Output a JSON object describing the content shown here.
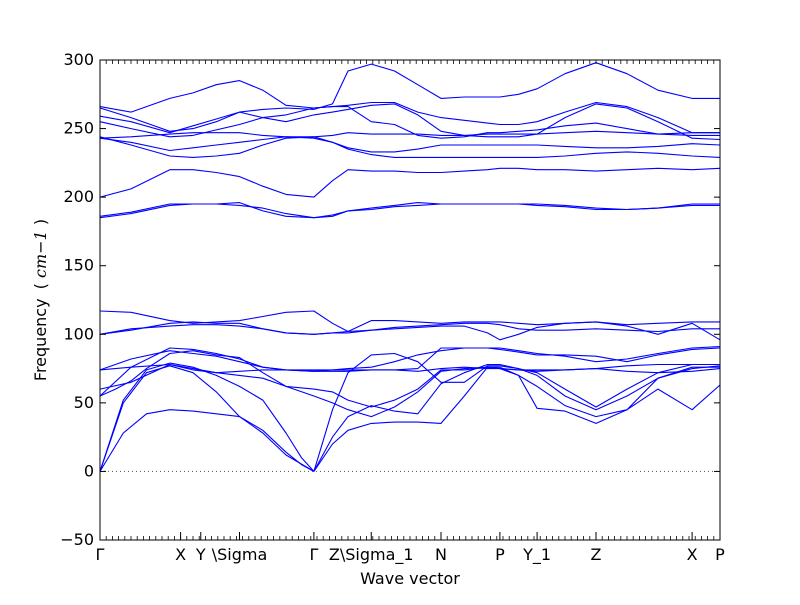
{
  "chart_data": {
    "type": "line",
    "title": "",
    "xlabel": "Wave vector",
    "ylabel": "Frequency",
    "ylabel_unit": "cm−1",
    "ylim": [
      -50,
      300
    ],
    "yticks": [
      -50,
      0,
      50,
      100,
      150,
      200,
      250,
      300
    ],
    "xlim": [
      0,
      4.0
    ],
    "grid": false,
    "legend": "none",
    "zero_line": {
      "y": 0,
      "style": "dotted",
      "color": "#555555"
    },
    "line_color": "#0000ff",
    "xticks_labels": [
      {
        "x": 0.0,
        "label": "Γ"
      },
      {
        "x": 0.52,
        "label": "X"
      },
      {
        "x": 0.65,
        "label": "Y"
      },
      {
        "x": 0.9,
        "label": "\\Sigma"
      },
      {
        "x": 1.38,
        "label": "Γ"
      },
      {
        "x": 1.75,
        "label": "Z\\Sigma_1"
      },
      {
        "x": 2.2,
        "label": "N"
      },
      {
        "x": 2.58,
        "label": "P"
      },
      {
        "x": 2.82,
        "label": "Y_1"
      },
      {
        "x": 3.2,
        "label": "Z"
      },
      {
        "x": 3.82,
        "label": "X"
      },
      {
        "x": 4.0,
        "label": "P"
      }
    ],
    "series": [
      {
        "x": [
          0,
          0.15,
          0.3,
          0.45,
          0.6,
          0.75,
          0.9,
          1.05,
          1.2,
          1.3,
          1.38
        ],
        "y": [
          0,
          50,
          72,
          77,
          72,
          58,
          40,
          30,
          14,
          5,
          0
        ]
      },
      {
        "x": [
          0,
          0.15,
          0.3,
          0.45,
          0.6,
          0.75,
          0.9,
          1.05,
          1.2,
          1.3,
          1.38
        ],
        "y": [
          0,
          52,
          74,
          79,
          76,
          70,
          62,
          52,
          28,
          10,
          0
        ]
      },
      {
        "x": [
          0,
          0.15,
          0.3,
          0.45,
          0.6,
          0.75,
          0.9,
          1.05,
          1.2,
          1.38
        ],
        "y": [
          0,
          28,
          42,
          45,
          44,
          42,
          40,
          28,
          12,
          0
        ]
      },
      {
        "x": [
          1.38,
          1.5,
          1.6,
          1.75,
          1.9,
          2.05,
          2.2,
          2.35,
          2.5,
          2.58,
          2.7,
          2.82,
          3.0,
          3.2,
          3.4,
          3.6,
          3.82,
          4.0
        ],
        "y": [
          0,
          20,
          30,
          35,
          36,
          36,
          35,
          55,
          76,
          76,
          70,
          46,
          44,
          35,
          45,
          60,
          45,
          63
        ]
      },
      {
        "x": [
          1.38,
          1.5,
          1.6,
          1.75,
          1.9,
          2.05,
          2.2,
          2.35,
          2.5,
          2.58,
          2.7,
          2.82,
          3.0,
          3.2,
          3.4,
          3.6,
          3.82,
          4.0
        ],
        "y": [
          0,
          25,
          40,
          48,
          44,
          42,
          64,
          72,
          78,
          78,
          75,
          70,
          55,
          45,
          55,
          68,
          75,
          77
        ]
      },
      {
        "x": [
          1.38,
          1.5,
          1.6,
          1.75,
          1.9,
          2.05,
          2.2,
          2.35,
          2.5,
          2.58,
          2.7,
          2.82,
          3.0,
          3.2,
          3.4,
          3.6,
          3.82,
          4.0
        ],
        "y": [
          0,
          45,
          72,
          85,
          86,
          80,
          65,
          65,
          77,
          77,
          75,
          72,
          60,
          47,
          60,
          72,
          78,
          78
        ]
      },
      {
        "x": [
          0,
          0.1,
          0.2,
          0.3,
          0.45,
          0.6,
          0.75,
          0.9,
          1.05,
          1.2,
          1.38,
          1.5,
          1.6,
          1.75,
          1.9,
          2.05,
          2.2,
          2.35,
          2.5,
          2.58,
          2.7,
          2.82,
          3.0,
          3.2,
          3.4,
          3.6,
          3.82,
          4.0
        ],
        "y": [
          55,
          60,
          66,
          75,
          86,
          88,
          85,
          83,
          72,
          62,
          55,
          50,
          45,
          40,
          47,
          58,
          73,
          75,
          76,
          75,
          70,
          62,
          48,
          40,
          45,
          68,
          76,
          76
        ]
      },
      {
        "x": [
          0,
          0.2,
          0.45,
          0.6,
          0.75,
          0.9,
          1.05,
          1.2,
          1.38,
          1.5,
          1.6,
          1.75,
          1.9,
          2.05,
          2.2,
          2.35,
          2.5,
          2.58,
          2.7,
          2.82,
          3.0,
          3.2,
          3.4,
          3.6,
          3.82,
          4.0
        ],
        "y": [
          60,
          65,
          78,
          75,
          72,
          70,
          68,
          62,
          60,
          58,
          52,
          47,
          52,
          60,
          74,
          74,
          76,
          75,
          74,
          73,
          74,
          75,
          73,
          72,
          73,
          75
        ]
      },
      {
        "x": [
          0,
          0.2,
          0.45,
          0.6,
          0.75,
          0.9,
          1.05,
          1.2,
          1.38,
          1.5,
          1.6,
          1.75,
          1.9,
          2.05,
          2.2,
          2.35,
          2.5,
          2.58,
          2.7,
          2.82,
          3.0,
          3.2,
          3.4,
          3.6,
          3.82,
          4.0
        ],
        "y": [
          74,
          76,
          78,
          74,
          72,
          73,
          74,
          74,
          74,
          74,
          74,
          74,
          74,
          73,
          75,
          76,
          75,
          75,
          74,
          74,
          74,
          75,
          77,
          78,
          78,
          78
        ]
      },
      {
        "x": [
          0,
          0.2,
          0.45,
          0.6,
          0.75,
          0.9,
          1.05,
          1.2,
          1.38,
          1.5,
          1.6,
          1.75,
          1.9,
          2.05,
          2.2,
          2.35,
          2.5,
          2.58,
          2.7,
          2.82,
          3.0,
          3.2,
          3.4,
          3.6,
          3.82,
          4.0
        ],
        "y": [
          74,
          82,
          88,
          86,
          84,
          80,
          76,
          74,
          73,
          73,
          73,
          74,
          74,
          75,
          90,
          90,
          90,
          90,
          88,
          86,
          84,
          80,
          82,
          86,
          90,
          91
        ]
      },
      {
        "x": [
          0,
          0.2,
          0.45,
          0.6,
          0.75,
          0.9,
          1.05,
          1.2,
          1.38,
          1.5,
          1.6,
          1.75,
          1.9,
          2.05,
          2.2,
          2.35,
          2.5,
          2.58,
          2.7,
          2.82,
          3.0,
          3.2,
          3.4,
          3.6,
          3.82,
          4.0
        ],
        "y": [
          55,
          76,
          90,
          89,
          86,
          82,
          76,
          74,
          73,
          74,
          75,
          76,
          80,
          85,
          88,
          90,
          90,
          89,
          87,
          85,
          85,
          84,
          80,
          85,
          89,
          90
        ]
      },
      {
        "x": [
          0,
          0.2,
          0.45,
          0.6,
          0.75,
          0.9,
          1.05,
          1.2,
          1.38,
          1.5,
          1.6,
          1.75,
          1.9,
          2.05,
          2.2,
          2.35,
          2.5,
          2.58,
          2.7,
          2.82,
          3.0,
          3.2,
          3.4,
          3.6,
          3.82,
          4.0
        ],
        "y": [
          100,
          103,
          108,
          109,
          108,
          108,
          104,
          101,
          100,
          101,
          101,
          103,
          105,
          106,
          107,
          108,
          108,
          107,
          104,
          103,
          103,
          104,
          103,
          102,
          104,
          104
        ]
      },
      {
        "x": [
          0,
          0.2,
          0.45,
          0.6,
          0.75,
          0.9,
          1.05,
          1.2,
          1.38,
          1.5,
          1.6,
          1.75,
          1.9,
          2.05,
          2.2,
          2.35,
          2.5,
          2.58,
          2.7,
          2.82,
          3.0,
          3.2,
          3.4,
          3.6,
          3.82,
          4.0
        ],
        "y": [
          100,
          104,
          106,
          107,
          107,
          106,
          104,
          101,
          100,
          101,
          102,
          103,
          104,
          105,
          106,
          106,
          101,
          96,
          100,
          105,
          108,
          109,
          106,
          100,
          108,
          96
        ]
      },
      {
        "x": [
          0,
          0.2,
          0.45,
          0.6,
          0.75,
          0.9,
          1.05,
          1.2,
          1.38,
          1.5,
          1.6,
          1.75,
          1.9,
          2.05,
          2.2,
          2.35,
          2.5,
          2.58,
          2.7,
          2.82,
          3.0,
          3.2,
          3.4,
          3.6,
          3.82,
          4.0
        ],
        "y": [
          117,
          116,
          110,
          108,
          109,
          110,
          113,
          116,
          117,
          108,
          102,
          110,
          110,
          109,
          108,
          109,
          109,
          109,
          108,
          107,
          108,
          109,
          107,
          108,
          109,
          109
        ]
      },
      {
        "x": [
          0,
          0.2,
          0.45,
          0.6,
          0.75,
          0.9,
          1.05,
          1.2,
          1.38,
          1.5,
          1.6,
          1.75,
          1.9,
          2.05,
          2.2,
          2.35,
          2.5,
          2.58,
          2.7,
          2.82,
          3.0,
          3.2,
          3.4,
          3.6,
          3.82,
          4.0
        ],
        "y": [
          185,
          188,
          194,
          195,
          195,
          194,
          192,
          188,
          185,
          186,
          190,
          191,
          193,
          194,
          195,
          195,
          195,
          195,
          195,
          194,
          193,
          191,
          191,
          192,
          194,
          194
        ]
      },
      {
        "x": [
          0,
          0.2,
          0.45,
          0.6,
          0.75,
          0.9,
          1.05,
          1.2,
          1.38,
          1.5,
          1.6,
          1.75,
          1.9,
          2.05,
          2.2,
          2.35,
          2.5,
          2.58,
          2.7,
          2.82,
          3.0,
          3.2,
          3.4,
          3.6,
          3.82,
          4.0
        ],
        "y": [
          186,
          189,
          195,
          195,
          195,
          196,
          190,
          186,
          185,
          187,
          190,
          192,
          194,
          196,
          195,
          195,
          195,
          195,
          195,
          195,
          194,
          192,
          191,
          192,
          195,
          195
        ]
      },
      {
        "x": [
          0,
          0.2,
          0.45,
          0.6,
          0.75,
          0.9,
          1.05,
          1.2,
          1.38,
          1.5,
          1.6,
          1.75,
          1.9,
          2.05,
          2.2,
          2.35,
          2.5,
          2.58,
          2.7,
          2.82,
          3.0,
          3.2,
          3.4,
          3.6,
          3.82,
          4.0
        ],
        "y": [
          200,
          206,
          220,
          220,
          218,
          215,
          208,
          202,
          200,
          212,
          220,
          219,
          219,
          218,
          218,
          219,
          220,
          221,
          221,
          220,
          220,
          219,
          220,
          221,
          220,
          221
        ]
      },
      {
        "x": [
          0,
          0.2,
          0.45,
          0.6,
          0.75,
          0.9,
          1.05,
          1.2,
          1.38,
          1.5,
          1.6,
          1.75,
          1.9,
          2.05,
          2.2,
          2.35,
          2.5,
          2.58,
          2.7,
          2.82,
          3.0,
          3.2,
          3.4,
          3.6,
          3.82,
          4.0
        ],
        "y": [
          244,
          238,
          230,
          229,
          230,
          232,
          238,
          243,
          244,
          240,
          235,
          231,
          229,
          229,
          229,
          229,
          229,
          229,
          229,
          229,
          230,
          232,
          233,
          232,
          230,
          229
        ]
      },
      {
        "x": [
          0,
          0.2,
          0.45,
          0.6,
          0.75,
          0.9,
          1.05,
          1.2,
          1.38,
          1.5,
          1.6,
          1.75,
          1.9,
          2.05,
          2.2,
          2.35,
          2.5,
          2.58,
          2.7,
          2.82,
          3.0,
          3.2,
          3.4,
          3.6,
          3.82,
          4.0
        ],
        "y": [
          243,
          240,
          234,
          236,
          238,
          240,
          242,
          244,
          243,
          240,
          236,
          233,
          233,
          235,
          238,
          238,
          238,
          238,
          238,
          238,
          237,
          236,
          236,
          237,
          239,
          238
        ]
      },
      {
        "x": [
          0,
          0.2,
          0.45,
          0.6,
          0.75,
          0.9,
          1.05,
          1.2,
          1.38,
          1.5,
          1.6,
          1.75,
          1.9,
          2.05,
          2.2,
          2.35,
          2.5,
          2.58,
          2.7,
          2.82,
          3.0,
          3.2,
          3.4,
          3.6,
          3.82,
          4.0
        ],
        "y": [
          243,
          244,
          246,
          247,
          247,
          247,
          245,
          244,
          244,
          245,
          247,
          246,
          246,
          246,
          245,
          245,
          246,
          246,
          246,
          246,
          247,
          248,
          247,
          246,
          245,
          245
        ]
      },
      {
        "x": [
          0,
          0.2,
          0.45,
          0.6,
          0.75,
          0.9,
          1.05,
          1.2,
          1.38,
          1.5,
          1.6,
          1.75,
          1.9,
          2.05,
          2.2,
          2.35,
          2.5,
          2.58,
          2.7,
          2.82,
          3.0,
          3.2,
          3.4,
          3.6,
          3.82,
          4.0
        ],
        "y": [
          255,
          250,
          244,
          245,
          249,
          253,
          258,
          260,
          265,
          266,
          266,
          255,
          253,
          245,
          243,
          244,
          247,
          247,
          248,
          249,
          252,
          254,
          250,
          246,
          247,
          247
        ]
      },
      {
        "x": [
          0,
          0.2,
          0.45,
          0.6,
          0.75,
          0.9,
          1.05,
          1.2,
          1.38,
          1.5,
          1.6,
          1.75,
          1.9,
          2.05,
          2.2,
          2.35,
          2.5,
          2.58,
          2.7,
          2.82,
          3.0,
          3.2,
          3.4,
          3.6,
          3.82,
          4.0
        ],
        "y": [
          265,
          258,
          248,
          250,
          255,
          262,
          258,
          255,
          260,
          262,
          264,
          267,
          268,
          260,
          248,
          245,
          244,
          244,
          244,
          246,
          258,
          268,
          265,
          255,
          243,
          242
        ]
      },
      {
        "x": [
          0,
          0.2,
          0.45,
          0.6,
          0.75,
          0.9,
          1.05,
          1.2,
          1.38,
          1.5,
          1.6,
          1.75,
          1.9,
          2.05,
          2.2,
          2.35,
          2.5,
          2.58,
          2.7,
          2.82,
          3.0,
          3.2,
          3.4,
          3.6,
          3.82,
          4.0
        ],
        "y": [
          259,
          255,
          247,
          252,
          257,
          262,
          264,
          265,
          264,
          268,
          292,
          297,
          292,
          282,
          272,
          273,
          273,
          273,
          275,
          279,
          290,
          298,
          290,
          278,
          272,
          272
        ]
      },
      {
        "x": [
          0,
          0.2,
          0.45,
          0.6,
          0.75,
          0.9,
          1.05,
          1.2,
          1.38,
          1.5,
          1.6,
          1.75,
          1.9,
          2.05,
          2.2,
          2.35,
          2.5,
          2.58,
          2.7,
          2.82,
          3.0,
          3.2,
          3.4,
          3.6,
          3.82,
          4.0
        ],
        "y": [
          266,
          262,
          272,
          276,
          282,
          285,
          278,
          267,
          265,
          266,
          267,
          269,
          269,
          262,
          258,
          256,
          254,
          253,
          253,
          255,
          262,
          269,
          266,
          258,
          247,
          247
        ]
      }
    ]
  }
}
